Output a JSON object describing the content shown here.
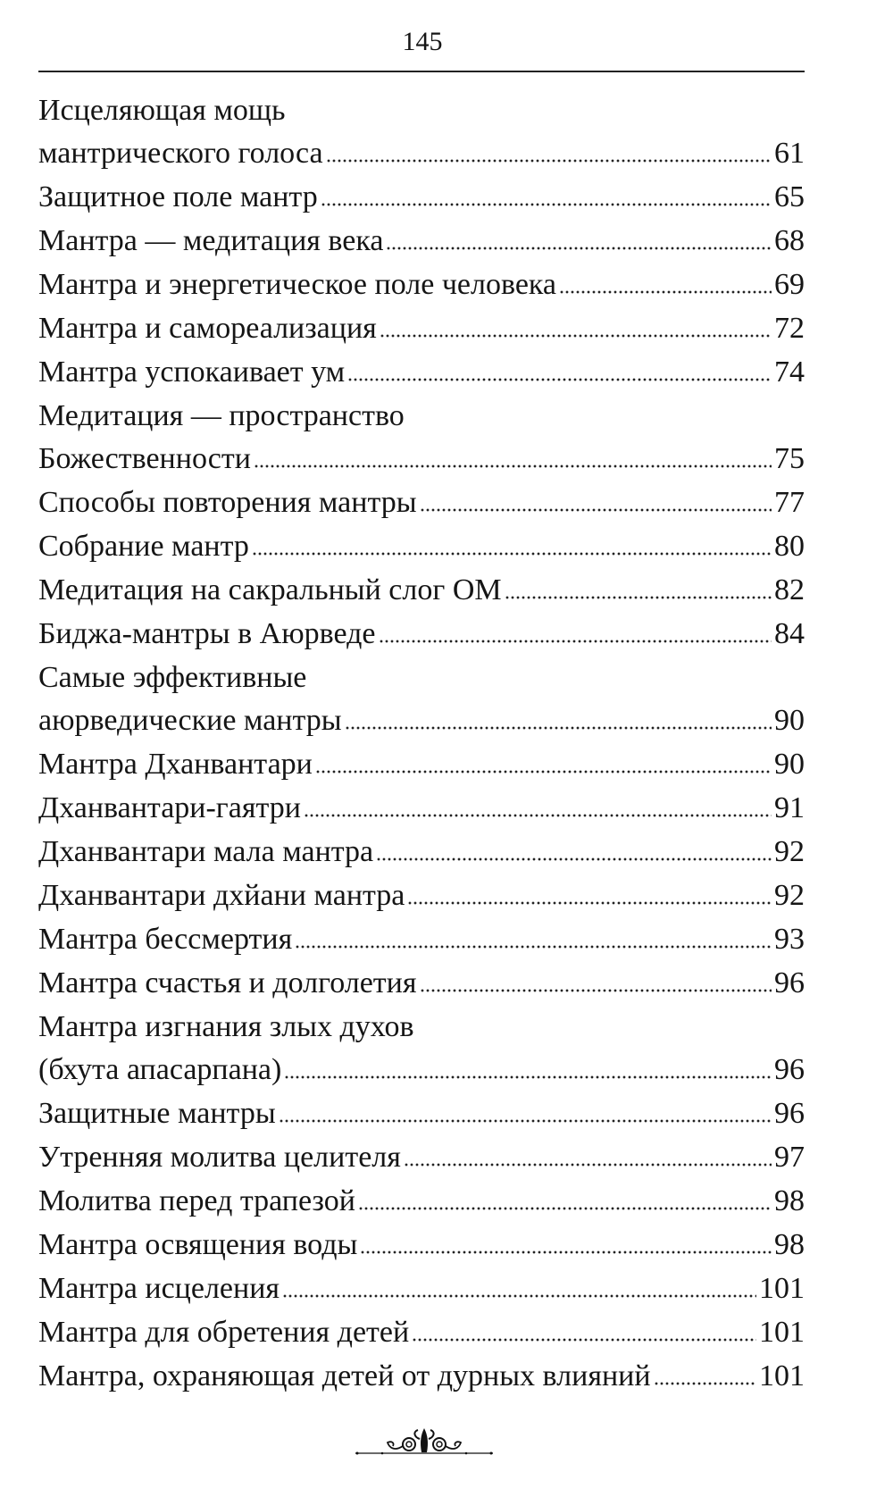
{
  "page_number": "145",
  "entries": [
    {
      "title_lines": [
        "Исцеляющая мощь",
        "мантрического голоса"
      ],
      "page": "61"
    },
    {
      "title_lines": [
        "Защитное поле мантр"
      ],
      "page": "65"
    },
    {
      "title_lines": [
        "Мантра — медитация века"
      ],
      "page": "68"
    },
    {
      "title_lines": [
        "Мантра и энергетическое поле человека"
      ],
      "page": "69"
    },
    {
      "title_lines": [
        "Мантра и самореализация"
      ],
      "page": "72"
    },
    {
      "title_lines": [
        "Мантра успокаивает ум"
      ],
      "page": "74"
    },
    {
      "title_lines": [
        "Медитация — пространство",
        "Божественности"
      ],
      "page": "75"
    },
    {
      "title_lines": [
        "Способы повторения мантры"
      ],
      "page": "77"
    },
    {
      "title_lines": [
        "Собрание мантр"
      ],
      "page": "80"
    },
    {
      "title_lines": [
        "Медитация на сакральный слог ОМ"
      ],
      "page": "82"
    },
    {
      "title_lines": [
        "Биджа-мантры в Аюрведе"
      ],
      "page": "84"
    },
    {
      "title_lines": [
        "Самые эффективные",
        "аюрведические мантры"
      ],
      "page": "90"
    },
    {
      "title_lines": [
        "Мантра Дханвантари"
      ],
      "page": "90"
    },
    {
      "title_lines": [
        "Дханвантари-гаятри"
      ],
      "page": "91"
    },
    {
      "title_lines": [
        "Дханвантари мала мантра"
      ],
      "page": "92"
    },
    {
      "title_lines": [
        "Дханвантари дхйани мантра"
      ],
      "page": "92"
    },
    {
      "title_lines": [
        "Мантра бессмертия"
      ],
      "page": "93"
    },
    {
      "title_lines": [
        "Мантра счастья и долголетия"
      ],
      "page": "96"
    },
    {
      "title_lines": [
        "Мантра изгнания злых духов",
        "(бхута апасарпана)"
      ],
      "page": "96"
    },
    {
      "title_lines": [
        "Защитные мантры"
      ],
      "page": "96"
    },
    {
      "title_lines": [
        "Утренняя молитва целителя"
      ],
      "page": "97"
    },
    {
      "title_lines": [
        "Молитва перед трапезой"
      ],
      "page": "98"
    },
    {
      "title_lines": [
        "Мантра освящения воды"
      ],
      "page": "98"
    },
    {
      "title_lines": [
        "Мантра исцеления"
      ],
      "page": "101"
    },
    {
      "title_lines": [
        "Мантра для обретения детей"
      ],
      "page": "101"
    },
    {
      "title_lines": [
        "Мантра, охраняющая детей от дурных влияний"
      ],
      "page": "101"
    }
  ],
  "ornament_icon": "fleuron-ornament-icon"
}
